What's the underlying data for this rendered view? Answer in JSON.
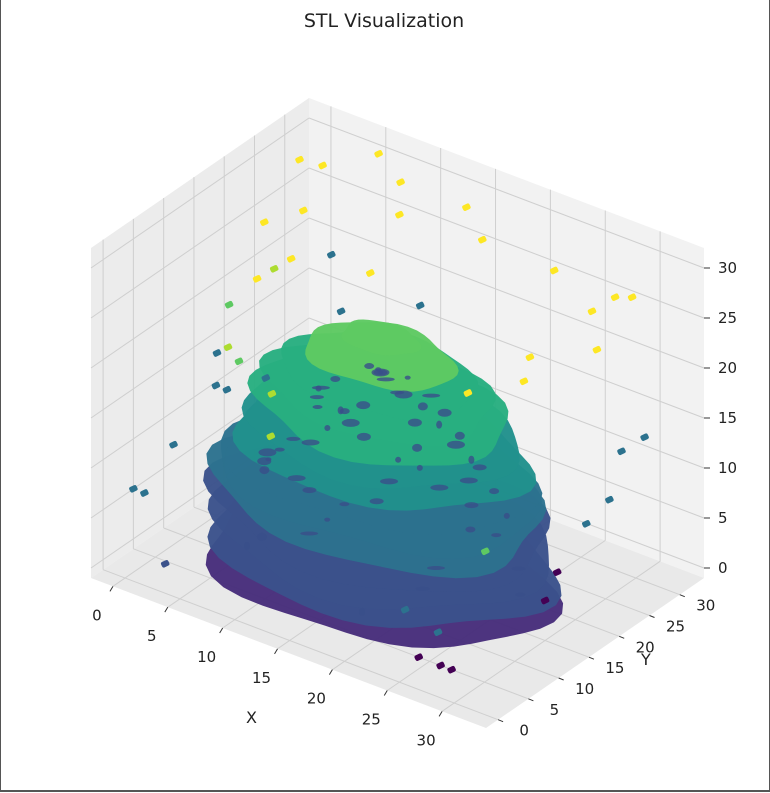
{
  "chart_data": {
    "type": "scatter",
    "title": "STL Visualization",
    "xlabel": "X",
    "ylabel": "Y",
    "zlabel": "",
    "xlim": [
      -2,
      34
    ],
    "ylim": [
      -2,
      34
    ],
    "zlim": [
      -1,
      32
    ],
    "x_ticks": [
      "0",
      "5",
      "10",
      "15",
      "20",
      "25",
      "30"
    ],
    "y_ticks": [
      "0",
      "5",
      "10",
      "15",
      "20",
      "25",
      "30"
    ],
    "z_ticks": [
      "0",
      "5",
      "10",
      "15",
      "20",
      "25",
      "30"
    ],
    "colormap": "viridis",
    "grid": true,
    "projection": "3d",
    "surface_color_range": [
      "#31688e",
      "#7ad151"
    ],
    "scatter_points": [
      {
        "x": 1,
        "y": 27,
        "z": 30,
        "c": 31
      },
      {
        "x": 2,
        "y": 29,
        "z": 29,
        "c": 31
      },
      {
        "x": 0,
        "y": 23,
        "z": 25,
        "c": 31
      },
      {
        "x": 3,
        "y": 24,
        "z": 27,
        "c": 31
      },
      {
        "x": 1,
        "y": 20,
        "z": 21,
        "c": 31
      },
      {
        "x": 2,
        "y": 21,
        "z": 22,
        "c": 27
      },
      {
        "x": 3,
        "y": 22,
        "z": 23,
        "c": 31
      },
      {
        "x": 6,
        "y": 31,
        "z": 31,
        "c": 31
      },
      {
        "x": 8,
        "y": 31,
        "z": 29,
        "c": 31
      },
      {
        "x": 9,
        "y": 29,
        "z": 27,
        "c": 31
      },
      {
        "x": 14,
        "y": 31,
        "z": 29,
        "c": 31
      },
      {
        "x": 16,
        "y": 30,
        "z": 27,
        "c": 31
      },
      {
        "x": 22,
        "y": 31,
        "z": 26,
        "c": 31
      },
      {
        "x": 26,
        "y": 30,
        "z": 24,
        "c": 31
      },
      {
        "x": 27,
        "y": 32,
        "z": 25,
        "c": 31
      },
      {
        "x": 28,
        "y": 33,
        "z": 25,
        "c": 31
      },
      {
        "x": 27,
        "y": 29,
        "z": 21,
        "c": 31
      },
      {
        "x": 22,
        "y": 27,
        "z": 19,
        "c": 31
      },
      {
        "x": 22,
        "y": 26,
        "z": 17,
        "c": 31
      },
      {
        "x": 18,
        "y": 24,
        "z": 15,
        "c": 31
      },
      {
        "x": 8,
        "y": 26,
        "z": 22,
        "c": 31
      },
      {
        "x": 5,
        "y": 25,
        "z": 23,
        "c": 12
      },
      {
        "x": 7,
        "y": 23,
        "z": 19,
        "c": 12
      },
      {
        "x": 12,
        "y": 27,
        "z": 20,
        "c": 12
      },
      {
        "x": -1,
        "y": 19,
        "z": 18,
        "c": 22
      },
      {
        "x": 0,
        "y": 17,
        "z": 15,
        "c": 27
      },
      {
        "x": 1,
        "y": 17,
        "z": 14,
        "c": 22
      },
      {
        "x": -1,
        "y": 17,
        "z": 14,
        "c": 12
      },
      {
        "x": 0,
        "y": 15,
        "z": 12,
        "c": 12
      },
      {
        "x": 1,
        "y": 15,
        "z": 12,
        "c": 12
      },
      {
        "x": 4,
        "y": 16,
        "z": 14,
        "c": 12
      },
      {
        "x": 4,
        "y": 17,
        "z": 12,
        "c": 27
      },
      {
        "x": 5,
        "y": 15,
        "z": 9,
        "c": 27
      },
      {
        "x": 0,
        "y": 8,
        "z": 9,
        "c": 12
      },
      {
        "x": -2,
        "y": 5,
        "z": 5,
        "c": 12
      },
      {
        "x": -1,
        "y": 5,
        "z": 5,
        "c": 12
      },
      {
        "x": 2,
        "y": 3,
        "z": 0,
        "c": 8
      },
      {
        "x": 20,
        "y": 10,
        "z": 0,
        "c": 12
      },
      {
        "x": 23,
        "y": 10,
        "z": -1,
        "c": 12
      },
      {
        "x": 24,
        "y": 5,
        "z": -1,
        "c": 1
      },
      {
        "x": 26,
        "y": 5,
        "z": -1,
        "c": 1
      },
      {
        "x": 27,
        "y": 5,
        "z": -1,
        "c": 1
      },
      {
        "x": 32,
        "y": 22,
        "z": 11,
        "c": 12
      },
      {
        "x": 32,
        "y": 24,
        "z": 15,
        "c": 12
      },
      {
        "x": 33,
        "y": 26,
        "z": 16,
        "c": 12
      },
      {
        "x": 31,
        "y": 20,
        "z": 9,
        "c": 12
      },
      {
        "x": 30,
        "y": 17,
        "z": 5,
        "c": 0
      },
      {
        "x": 30,
        "y": 15,
        "z": 3,
        "c": 0
      },
      {
        "x": 24,
        "y": 16,
        "z": 5,
        "c": 22
      }
    ],
    "surface_blob": {
      "x_center": 15,
      "y_center": 15,
      "x_radius": 14,
      "y_radius": 13,
      "z_peak": 23
    }
  }
}
